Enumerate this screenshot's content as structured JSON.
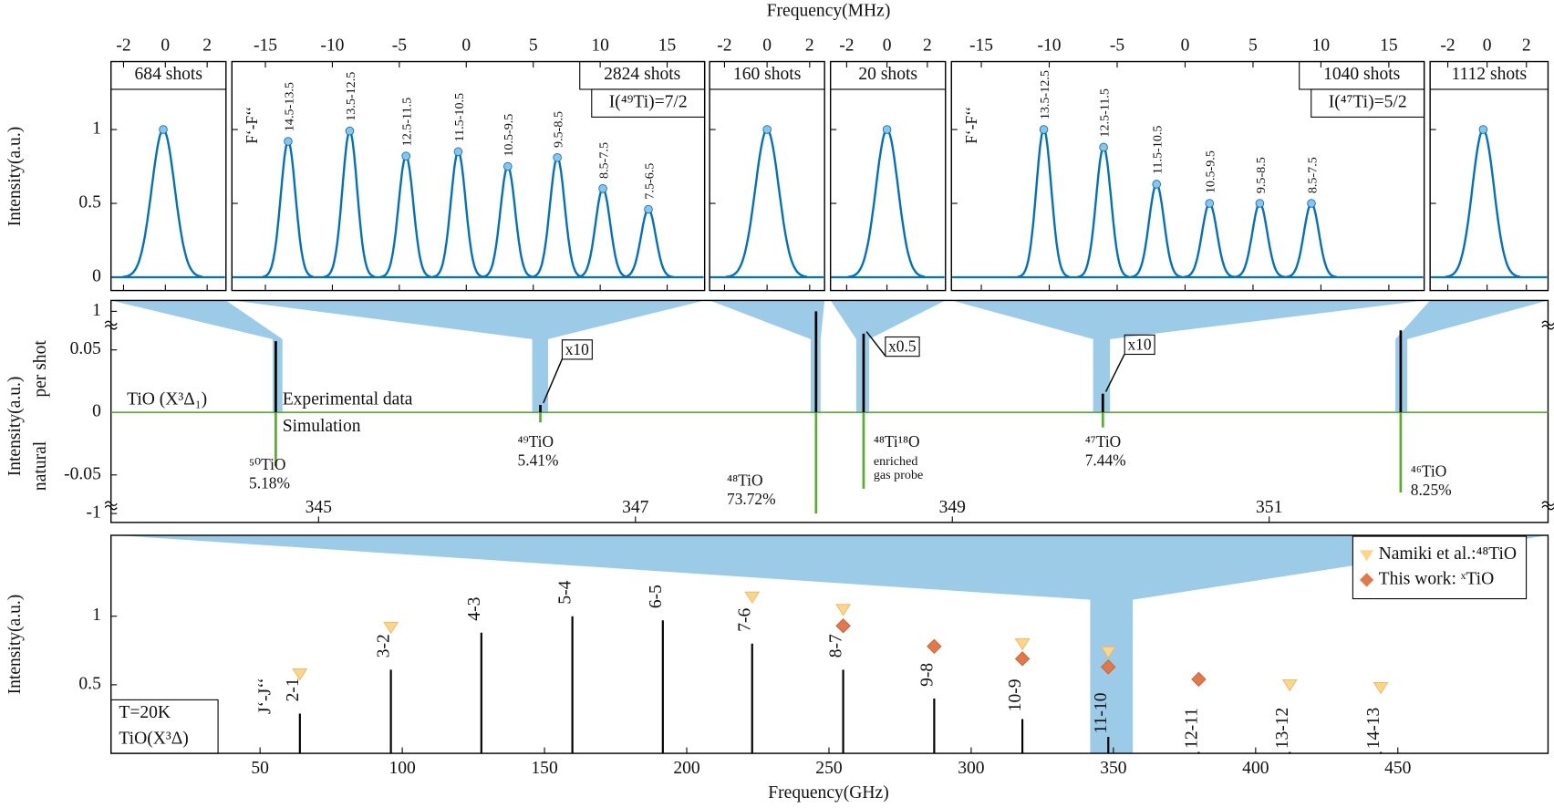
{
  "chart_data": [
    {
      "type": "line",
      "title": "Frequency(MHz)",
      "ylabel": "Intensity(a.u.)",
      "annotation": "684 shots",
      "xlim": [
        -2.6,
        2.9
      ],
      "xticks": [
        -2,
        0,
        2
      ],
      "ylim": [
        -0.09,
        1.46
      ],
      "yticks": [
        0,
        0.5,
        1
      ],
      "color": "#0072bd",
      "point_color": "#8cc4e8",
      "x": [
        -0.1
      ],
      "values": [
        1.0
      ]
    },
    {
      "type": "line",
      "annotation": "2824 shots",
      "spin": "I(⁴⁹Ti)=7/2",
      "peak_title": "F‘-F‘‘",
      "xlim": [
        -17.5,
        17.8
      ],
      "xticks": [
        -15,
        -10,
        -5,
        0,
        5,
        10,
        15
      ],
      "ylim": [
        -0.09,
        1.46
      ],
      "color": "#0072bd",
      "point_color": "#8cc4e8",
      "x": [
        -13.3,
        -8.7,
        -4.5,
        -0.6,
        3.1,
        6.8,
        10.2,
        13.6
      ],
      "values": [
        0.92,
        0.99,
        0.82,
        0.85,
        0.75,
        0.81,
        0.6,
        0.46
      ],
      "peak_labels": [
        "14.5-13.5",
        "13.5-12.5",
        "12.5-11.5",
        "11.5-10.5",
        "10.5-9.5",
        "9.5-8.5",
        "8.5-7.5",
        "7.5-6.5"
      ]
    },
    {
      "type": "line",
      "annotation": "160 shots",
      "xlim": [
        -2.7,
        2.7
      ],
      "xticks": [
        -2,
        0,
        2
      ],
      "ylim": [
        -0.09,
        1.46
      ],
      "color": "#0072bd",
      "point_color": "#8cc4e8",
      "x": [
        0
      ],
      "values": [
        1.0
      ]
    },
    {
      "type": "line",
      "annotation": "20 shots",
      "xlim": [
        -2.8,
        2.9
      ],
      "xticks": [
        -2,
        0,
        2
      ],
      "ylim": [
        -0.09,
        1.46
      ],
      "color": "#0072bd",
      "point_color": "#8cc4e8",
      "x": [
        0
      ],
      "values": [
        1.0
      ]
    },
    {
      "type": "line",
      "annotation": "1040 shots",
      "spin": "I(⁴⁷Ti)=5/2",
      "peak_title": "F‘-F‘‘",
      "xlim": [
        -17.2,
        17.6
      ],
      "xticks": [
        -15,
        -10,
        -5,
        0,
        5,
        10,
        15
      ],
      "ylim": [
        -0.09,
        1.46
      ],
      "color": "#0072bd",
      "point_color": "#8cc4e8",
      "x": [
        -10.4,
        -6.0,
        -2.1,
        1.8,
        5.5,
        9.3
      ],
      "values": [
        1.0,
        0.88,
        0.63,
        0.5,
        0.5,
        0.5
      ],
      "peak_labels": [
        "13.5-12.5",
        "12.5-11.5",
        "11.5-10.5",
        "10.5-9.5",
        "9.5-8.5",
        "8.5-7.5"
      ]
    },
    {
      "type": "line",
      "annotation": "1112 shots",
      "xlim": [
        -2.9,
        3.1
      ],
      "xticks": [
        -2,
        0,
        2
      ],
      "ylim": [
        -0.09,
        1.46
      ],
      "color": "#0072bd",
      "point_color": "#8cc4e8",
      "x": [
        -0.2
      ],
      "values": [
        1.0
      ]
    },
    {
      "type": "stem",
      "ylabel": "Intensity(a.u.)",
      "ylabel_unit": "per shot",
      "ylabel_sim": "natural",
      "annotation": "TiO (X³Δ₁)",
      "xlim": [
        343.69,
        352.76
      ],
      "xticks": [
        345,
        347,
        349,
        351
      ],
      "ylim": [
        -1,
        1
      ],
      "yticks": [
        1,
        0.05,
        0,
        -0.05,
        -1
      ],
      "x": [
        344.73,
        346.4,
        348.14,
        348.44,
        349.95,
        351.83
      ],
      "isotopes": [
        "⁵⁰TiO",
        "⁴⁹TiO",
        "⁴⁸TiO",
        "⁴⁸Ti¹⁸O",
        "⁴⁷TiO",
        "⁴⁶TiO"
      ],
      "abundance": [
        5.18,
        5.41,
        73.72,
        null,
        7.44,
        8.25
      ],
      "abundance_labels": [
        "5.18%",
        "5.41%",
        "73.72%",
        null,
        "7.44%",
        "8.25%"
      ],
      "probe_note": [
        "enriched",
        "gas probe"
      ],
      "scale_labels": [
        null,
        "x10",
        null,
        "x0.5",
        "x10",
        null
      ],
      "series": [
        {
          "name": "Experimental data",
          "color": "#000000",
          "values": [
            0.057,
            0.006,
            1,
            0.063,
            0.015,
            0.1
          ]
        },
        {
          "name": "Simulation",
          "color": "#5aab32",
          "values": [
            -0.043,
            -0.008,
            -1,
            -0.061,
            -0.012,
            -0.064
          ]
        }
      ]
    },
    {
      "type": "stick",
      "xlabel": "Frequency(GHz)",
      "ylabel": "Intensity(a.u.)",
      "transition_title": "J‘-J‘‘",
      "annotation": [
        "T=20K",
        "TiO(X³Δ)"
      ],
      "xlim": [
        -2.4,
        502.8
      ],
      "xticks": [
        50,
        100,
        150,
        200,
        250,
        300,
        350,
        400,
        450
      ],
      "ylim": [
        0,
        1.59
      ],
      "yticks": [
        0.5,
        1
      ],
      "legend": "top-right",
      "categories": [
        "2-1",
        "3-2",
        "4-3",
        "5-4",
        "6-5",
        "7-6",
        "8-7",
        "9-8",
        "10-9",
        "11-10",
        "12-11",
        "13-12",
        "14-13"
      ],
      "x": [
        64,
        96,
        127.8,
        159.8,
        191.6,
        223,
        255,
        287,
        318,
        348.2,
        380,
        412,
        444
      ],
      "values": [
        0.29,
        0.61,
        0.88,
        1.0,
        0.97,
        0.8,
        0.61,
        0.4,
        0.25,
        0.12,
        0.01,
        0.01,
        0.01
      ],
      "color": "#000000",
      "series": [
        {
          "name": "Namiki et al.:⁴⁸TiO",
          "color": "#fdd58a",
          "marker": "triangle",
          "values": [
            0.58,
            0.92,
            null,
            null,
            null,
            1.14,
            1.05,
            null,
            0.8,
            0.74,
            null,
            0.5,
            0.48
          ]
        },
        {
          "name": "This work: ˣTiO",
          "color": "#e0784a",
          "marker": "diamond",
          "values": [
            null,
            null,
            null,
            null,
            null,
            null,
            0.93,
            0.78,
            0.69,
            0.63,
            0.54,
            null,
            null
          ]
        }
      ]
    }
  ]
}
